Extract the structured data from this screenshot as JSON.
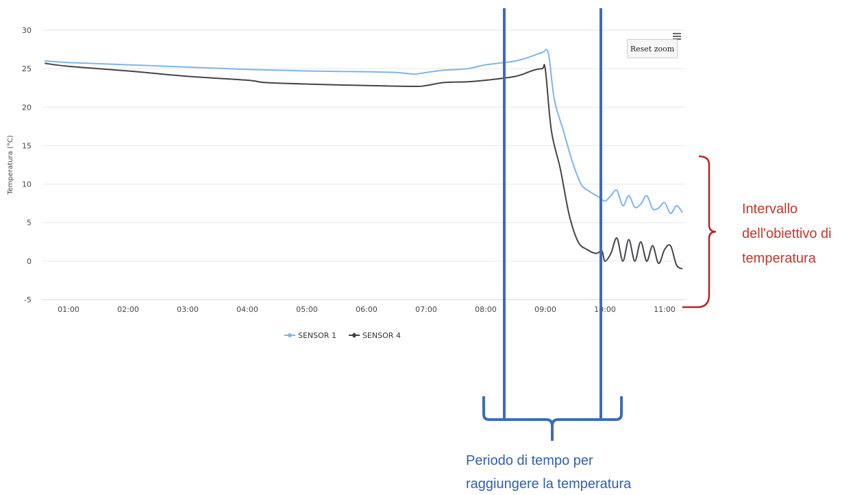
{
  "chart_data": {
    "type": "line",
    "ylabel": "Temperatura (°C)",
    "ylim": [
      -5,
      30
    ],
    "y_ticks": [
      "30",
      "25",
      "20",
      "15",
      "10",
      "5",
      "0",
      "-5"
    ],
    "x_ticks": [
      "01:00",
      "02:00",
      "03:00",
      "04:00",
      "05:00",
      "06:00",
      "07:00",
      "08:00",
      "09:00",
      "10:00",
      "11:00"
    ],
    "x_range_hours": [
      0.6,
      11.3
    ],
    "grid": true,
    "legend_position": "bottom",
    "series": [
      {
        "name": "SENSOR 1",
        "color": "#7cb5ec",
        "x": [
          0.6,
          1.0,
          2.0,
          3.0,
          4.0,
          5.0,
          6.0,
          6.5,
          6.8,
          7.0,
          7.3,
          7.7,
          8.0,
          8.5,
          8.8,
          8.95,
          9.05,
          9.15,
          9.3,
          9.45,
          9.6,
          9.75,
          9.9,
          10.0,
          10.1,
          10.2,
          10.3,
          10.4,
          10.5,
          10.6,
          10.7,
          10.8,
          10.9,
          11.0,
          11.1,
          11.2,
          11.3
        ],
        "y": [
          26.0,
          25.8,
          25.5,
          25.2,
          24.9,
          24.7,
          24.6,
          24.5,
          24.3,
          24.5,
          24.8,
          25.0,
          25.5,
          26.0,
          26.7,
          27.1,
          27.0,
          21.0,
          17.0,
          13.0,
          10.0,
          9.0,
          8.3,
          7.8,
          8.5,
          9.2,
          7.2,
          8.5,
          7.0,
          7.4,
          8.5,
          6.8,
          6.9,
          7.6,
          6.2,
          7.2,
          6.3
        ]
      },
      {
        "name": "SENSOR 4",
        "color": "#434348",
        "x": [
          0.6,
          1.0,
          2.0,
          3.0,
          4.0,
          4.3,
          5.0,
          6.0,
          6.8,
          7.0,
          7.3,
          7.7,
          8.0,
          8.5,
          8.8,
          8.95,
          9.0,
          9.1,
          9.25,
          9.4,
          9.55,
          9.7,
          9.85,
          9.95,
          10.0,
          10.1,
          10.2,
          10.3,
          10.4,
          10.5,
          10.6,
          10.7,
          10.8,
          10.9,
          11.0,
          11.1,
          11.2,
          11.3
        ],
        "y": [
          25.7,
          25.3,
          24.7,
          24.0,
          23.5,
          23.2,
          23.0,
          22.8,
          22.7,
          22.8,
          23.2,
          23.3,
          23.5,
          24.0,
          24.8,
          25.0,
          24.9,
          17.0,
          12.0,
          6.0,
          2.5,
          1.5,
          1.0,
          1.3,
          0.0,
          1.0,
          3.0,
          0.0,
          2.8,
          0.0,
          2.5,
          0.0,
          2.0,
          -0.3,
          1.5,
          2.0,
          -0.5,
          -1.0
        ]
      }
    ]
  },
  "toolbar": {
    "reset_zoom_label": "Reset zoom"
  },
  "annotations": {
    "range_label_lines": [
      "Intervallo",
      "dell'obiettivo di",
      "temperatura"
    ],
    "period_label_lines": [
      "Periodo di tempo per",
      "raggiungere la temperatura"
    ],
    "red_color": "#c0392b",
    "blue_color": "#2f5faa"
  }
}
